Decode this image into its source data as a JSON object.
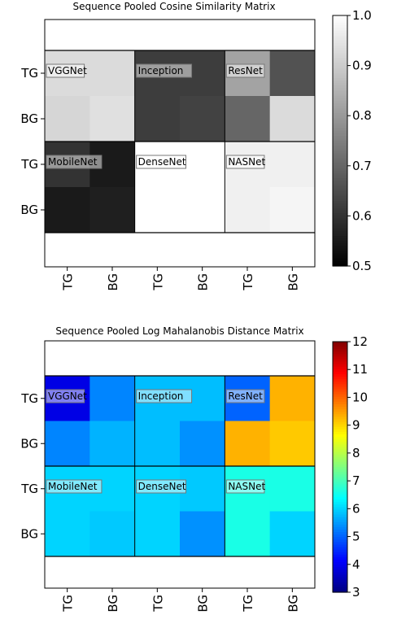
{
  "chart_data": [
    {
      "type": "heatmap",
      "title": "Sequence Pooled Cosine Similarity Matrix",
      "x_ticks": [
        "TG",
        "BG",
        "TG",
        "BG",
        "TG",
        "BG"
      ],
      "y_ticks": [
        "TG",
        "BG",
        "TG",
        "BG"
      ],
      "colormap": "gray",
      "vmin": 0.5,
      "vmax": 1.0,
      "colorbar_ticks": [
        "0.5",
        "0.6",
        "0.7",
        "0.8",
        "0.9",
        "1.0"
      ],
      "colorbar_tick_values": [
        0.5,
        0.6,
        0.7,
        0.8,
        0.9,
        1.0
      ],
      "values": [
        [
          0.93,
          0.93,
          0.62,
          0.62,
          0.82,
          0.66
        ],
        [
          0.92,
          0.94,
          0.62,
          0.63,
          0.7,
          0.93
        ],
        [
          0.6,
          0.55,
          1.0,
          1.0,
          0.97,
          0.97
        ],
        [
          0.55,
          0.56,
          1.0,
          1.0,
          0.97,
          0.98
        ]
      ],
      "groups": [
        {
          "name": "VGGNet",
          "row": 0,
          "col": 0
        },
        {
          "name": "Inception",
          "row": 0,
          "col": 1
        },
        {
          "name": "ResNet",
          "row": 0,
          "col": 2
        },
        {
          "name": "MobileNet",
          "row": 1,
          "col": 0
        },
        {
          "name": "DenseNet",
          "row": 1,
          "col": 1
        },
        {
          "name": "NASNet",
          "row": 1,
          "col": 2
        }
      ]
    },
    {
      "type": "heatmap",
      "title": "Sequence Pooled Log Mahalanobis Distance Matrix",
      "x_ticks": [
        "TG",
        "BG",
        "TG",
        "BG",
        "TG",
        "BG"
      ],
      "y_ticks": [
        "TG",
        "BG",
        "TG",
        "BG"
      ],
      "colormap": "jet",
      "vmin": 3,
      "vmax": 12,
      "colorbar_ticks": [
        "3",
        "4",
        "5",
        "6",
        "7",
        "8",
        "9",
        "10",
        "11",
        "12"
      ],
      "colorbar_tick_values": [
        3,
        4,
        5,
        6,
        7,
        8,
        9,
        10,
        11,
        12
      ],
      "values": [
        [
          3.9,
          5.3,
          5.8,
          5.8,
          5.0,
          9.3
        ],
        [
          5.3,
          5.7,
          5.8,
          5.4,
          9.3,
          9.1
        ],
        [
          6.0,
          6.0,
          6.0,
          5.9,
          6.6,
          6.6
        ],
        [
          6.0,
          5.9,
          6.0,
          5.4,
          6.6,
          6.0
        ]
      ],
      "groups": [
        {
          "name": "VGGNet",
          "row": 0,
          "col": 0
        },
        {
          "name": "Inception",
          "row": 0,
          "col": 1
        },
        {
          "name": "ResNet",
          "row": 0,
          "col": 2
        },
        {
          "name": "MobileNet",
          "row": 1,
          "col": 0
        },
        {
          "name": "DenseNet",
          "row": 1,
          "col": 1
        },
        {
          "name": "NASNet",
          "row": 1,
          "col": 2
        }
      ]
    }
  ]
}
